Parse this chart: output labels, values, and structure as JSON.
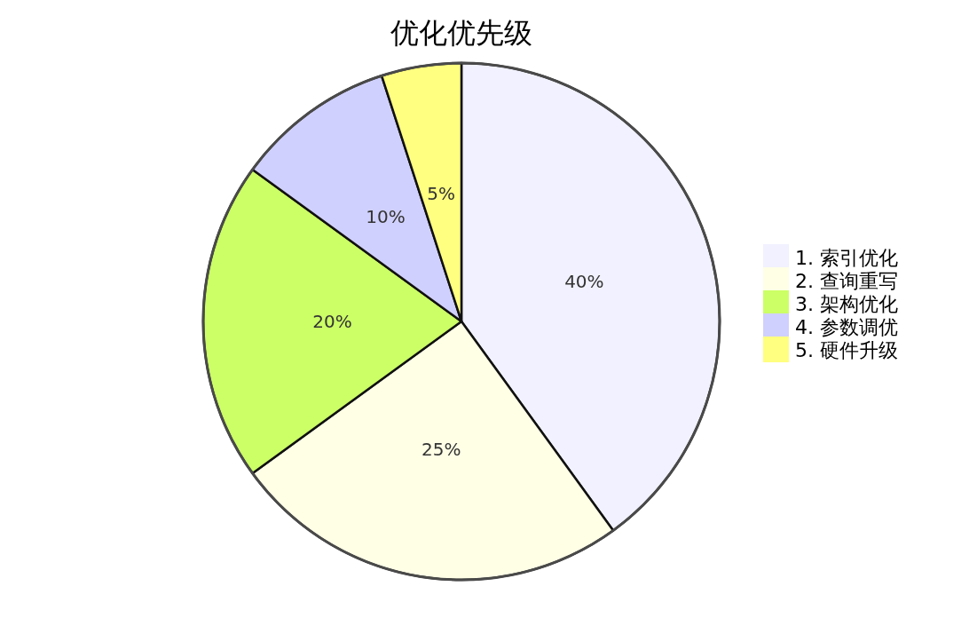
{
  "chart_data": {
    "type": "pie",
    "title": "优化优先级",
    "categories": [
      "1. 索引优化",
      "2. 查询重写",
      "3. 架构优化",
      "4. 参数调优",
      "5. 硬件升级"
    ],
    "values": [
      40,
      25,
      20,
      10,
      5
    ],
    "colors": [
      "#f1f1ff",
      "#ffffe6",
      "#ccff66",
      "#d0d0ff",
      "#ffff80"
    ],
    "value_labels": [
      "40%",
      "25%",
      "20%",
      "10%",
      "5%"
    ],
    "legend": "right"
  }
}
